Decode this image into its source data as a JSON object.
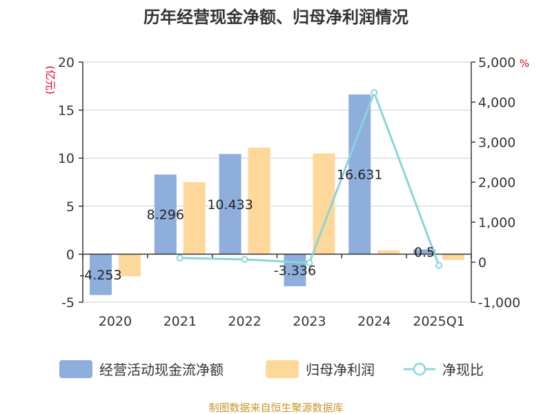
{
  "chart_data": {
    "type": "bar",
    "title": "历年经营现金净额、归母净利润情况",
    "categories": [
      "2020",
      "2021",
      "2022",
      "2023",
      "2024",
      "2025Q1"
    ],
    "left_axis": {
      "unit_label": "(亿元)",
      "ylim": [
        -5,
        20
      ],
      "ticks": [
        "-5",
        "0",
        "5",
        "10",
        "15",
        "20"
      ],
      "tick_values": [
        -5,
        0,
        5,
        10,
        15,
        20
      ]
    },
    "right_axis": {
      "unit_label": "%",
      "ylim": [
        -1000,
        5000
      ],
      "ticks": [
        "-1,000",
        "0",
        "1,000",
        "2,000",
        "3,000",
        "4,000",
        "5,000"
      ],
      "tick_values": [
        -1000,
        0,
        1000,
        2000,
        3000,
        4000,
        5000
      ]
    },
    "grid": true,
    "legend_position": "bottom",
    "series": [
      {
        "name": "经营活动现金流净额",
        "kind": "bar",
        "axis": "left",
        "color": "#8eaedc",
        "values": [
          -4.253,
          8.296,
          10.433,
          -3.336,
          16.631,
          0.5
        ],
        "labels": [
          "-4.253",
          "8.296",
          "10.433",
          "-3.336",
          "16.631",
          "0.5"
        ]
      },
      {
        "name": "归母净利润",
        "kind": "bar",
        "axis": "left",
        "color": "#fed89a",
        "values": [
          -2.3,
          7.5,
          11.1,
          10.5,
          0.4,
          -0.6
        ]
      },
      {
        "name": "净现比",
        "kind": "line",
        "axis": "right",
        "color": "#8ad4db",
        "values": [
          null,
          105,
          70,
          -15,
          4240,
          -80
        ]
      }
    ],
    "source": "制图数据来自恒生聚源数据库"
  }
}
